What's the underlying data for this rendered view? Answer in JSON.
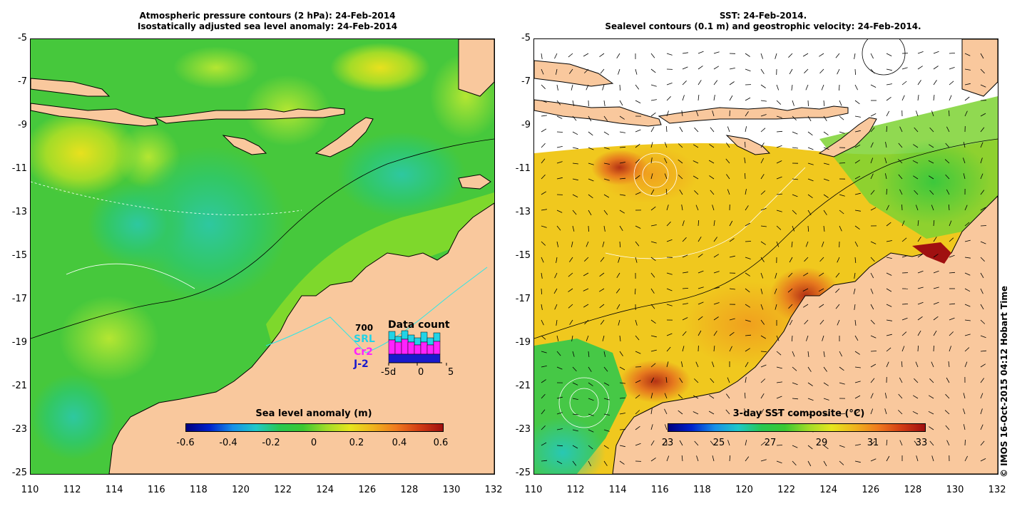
{
  "left_panel": {
    "title_line1": "Atmospheric pressure contours (2 hPa): 24-Feb-2014",
    "title_line2": "Isostatically adjusted sea level anomaly: 24-Feb-2014",
    "colorbar_title": "Sea level anomaly (m)",
    "colorbar_ticks": [
      "-0.6",
      "-0.4",
      "-0.2",
      "0",
      "0.2",
      "0.4",
      "0.6"
    ],
    "data_count": {
      "title": "Data count",
      "max_label": "700",
      "series": [
        "SRL",
        "Cr2",
        "J-2"
      ],
      "series_colors": [
        "#22d3e6",
        "#ff22ff",
        "#1a1acc"
      ],
      "x_ticks": [
        "-5d",
        "0",
        "5"
      ]
    }
  },
  "right_panel": {
    "title_line1": "SST: 24-Feb-2014.",
    "title_line2": "Sealevel contours (0.1 m) and geostrophic velocity: 24-Feb-2014.",
    "colorbar_title": "3-day SST composite (°C)",
    "colorbar_ticks": [
      "23",
      "25",
      "27",
      "29",
      "31",
      "33"
    ]
  },
  "axes": {
    "y_ticks": [
      "-5",
      "-7",
      "-9",
      "-11",
      "-13",
      "-15",
      "-17",
      "-19",
      "-21",
      "-23",
      "-25"
    ],
    "x_ticks": [
      "110",
      "112",
      "114",
      "116",
      "118",
      "120",
      "122",
      "124",
      "126",
      "128",
      "130",
      "132"
    ]
  },
  "colors": {
    "land": "#f9c89d",
    "ocean_green": "#3cc832",
    "ocean_yellow": "#c8e628"
  },
  "copyright": "© IMOS 16-Oct-2015 04:12 Hobart Time"
}
